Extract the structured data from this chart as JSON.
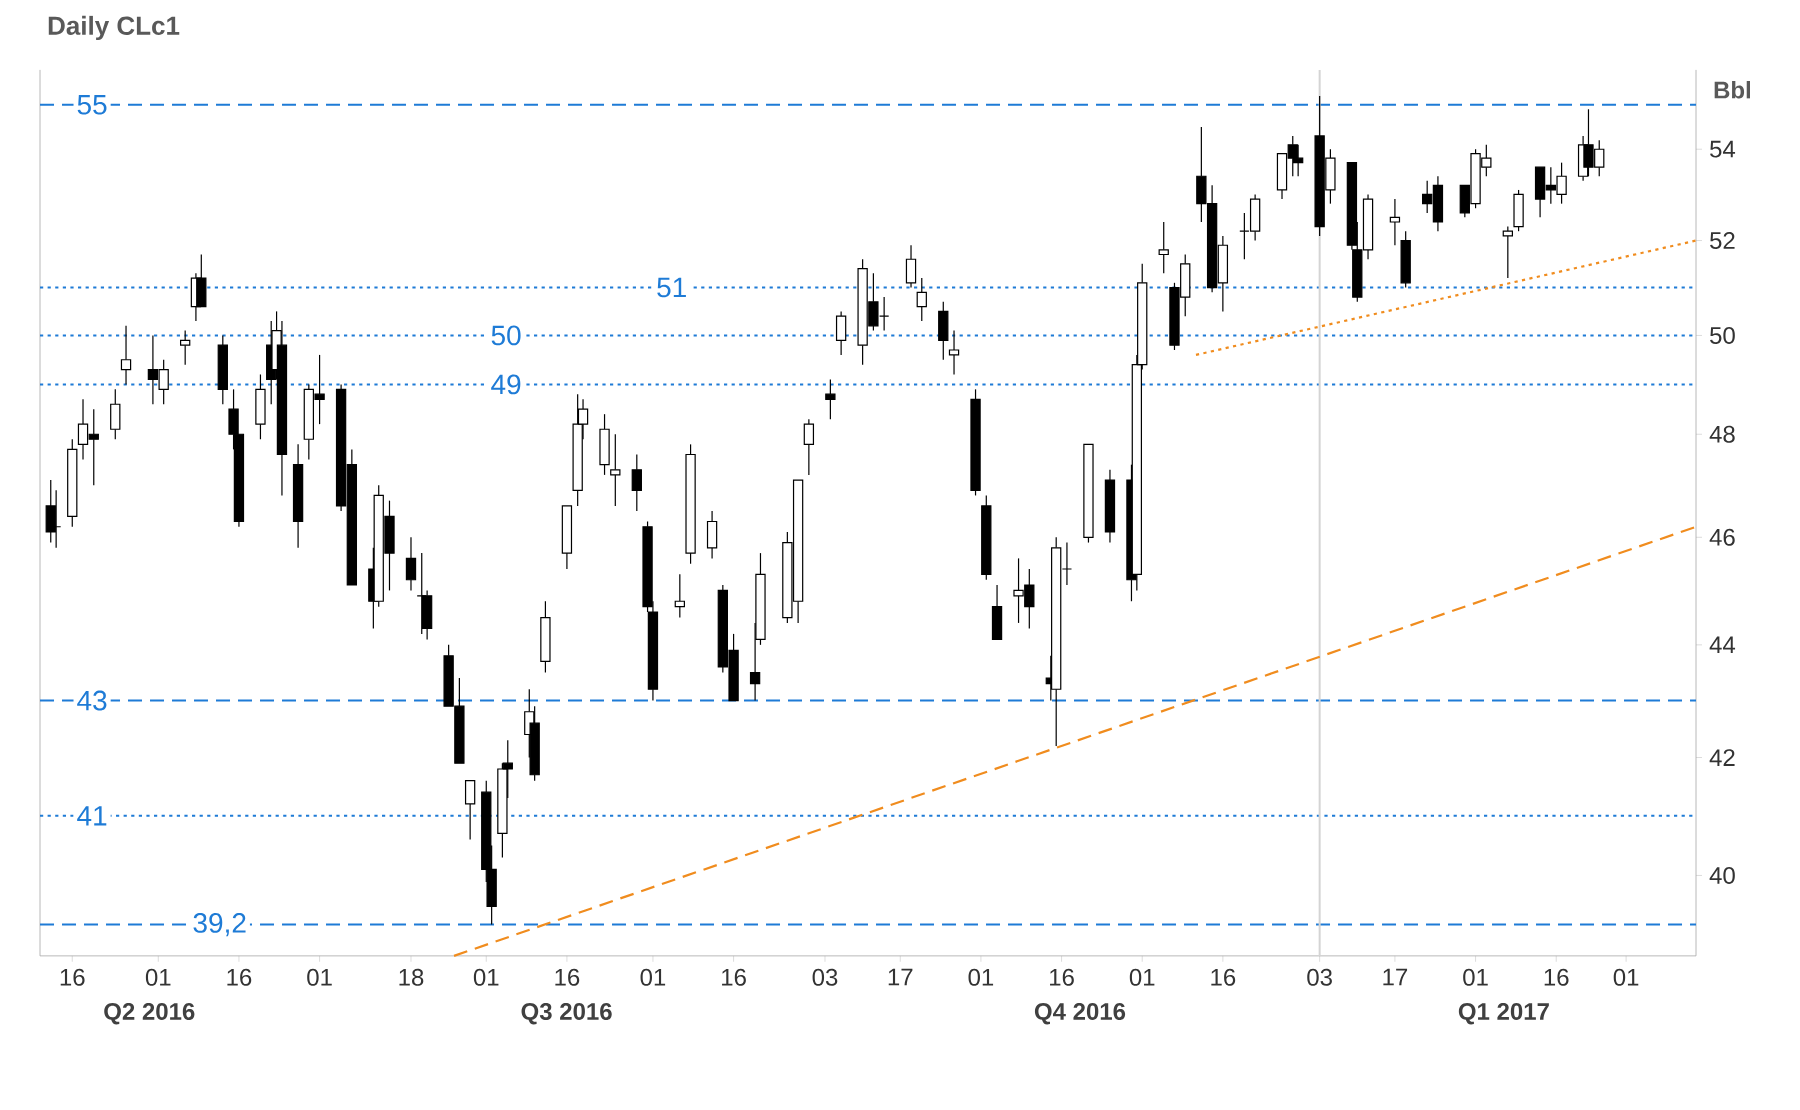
{
  "chart_data": {
    "type": "candlestick",
    "title": "Daily CLc1",
    "ylabel": "Bbl",
    "log": true,
    "xlim": [
      "2016-05-10",
      "2017-03-14"
    ],
    "ylim": [
      38.7,
      55.8
    ],
    "yticks": [
      40,
      42,
      44,
      46,
      48,
      50,
      52,
      54
    ],
    "xticks": [
      {
        "value": "2016-05-16",
        "label": "16"
      },
      {
        "value": "2016-06-01",
        "label": "01"
      },
      {
        "value": "2016-06-16",
        "label": "16"
      },
      {
        "value": "2016-07-01",
        "label": "01"
      },
      {
        "value": "2016-07-18",
        "label": "18"
      },
      {
        "value": "2016-08-01",
        "label": "01"
      },
      {
        "value": "2016-08-16",
        "label": "16"
      },
      {
        "value": "2016-09-01",
        "label": "01"
      },
      {
        "value": "2016-09-16",
        "label": "16"
      },
      {
        "value": "2016-10-03",
        "label": "03"
      },
      {
        "value": "2016-10-17",
        "label": "17"
      },
      {
        "value": "2016-11-01",
        "label": "01"
      },
      {
        "value": "2016-11-16",
        "label": "16"
      },
      {
        "value": "2016-12-01",
        "label": "01"
      },
      {
        "value": "2016-12-16",
        "label": "16"
      },
      {
        "value": "2017-01-03",
        "label": "03"
      },
      {
        "value": "2017-01-17",
        "label": "17"
      },
      {
        "value": "2017-02-01",
        "label": "01"
      },
      {
        "value": "2017-02-16",
        "label": "16"
      },
      {
        "value": "2017-03-01",
        "label": "01"
      }
    ],
    "annotations": [
      "Q2 2016",
      "Q3 2016",
      "Q4 2016",
      "Q1 2017"
    ],
    "ref_lines": [
      {
        "axis": "y",
        "value": 55,
        "label": "55",
        "color": "#1e7bd6",
        "line_style": "dashed"
      },
      {
        "axis": "y",
        "value": 51,
        "label": "51",
        "color": "#1e7bd6",
        "line_style": "dotted"
      },
      {
        "axis": "y",
        "value": 50,
        "label": "50",
        "color": "#1e7bd6",
        "line_style": "dotted"
      },
      {
        "axis": "y",
        "value": 49,
        "label": "49",
        "color": "#1e7bd6",
        "line_style": "dotted"
      },
      {
        "axis": "y",
        "value": 43,
        "label": "43",
        "color": "#1e7bd6",
        "line_style": "dashed"
      },
      {
        "axis": "y",
        "value": 41,
        "label": "41",
        "color": "#1e7bd6",
        "line_style": "dotted"
      },
      {
        "axis": "y",
        "value": 39.2,
        "label": "39,2",
        "color": "#1e7bd6",
        "line_style": "dashed"
      },
      {
        "axis": "x",
        "value": "2017-01-03",
        "color": "#d4d4d4",
        "line_style": "solid"
      }
    ],
    "series": [
      {
        "type": "line",
        "color": "#f08c1e",
        "line_style": "dashed",
        "x": [
          "2016-07-26",
          "2017-03-14"
        ],
        "values": [
          38.7,
          46.2
        ]
      },
      {
        "type": "line",
        "color": "#f08c1e",
        "line_style": "dotted",
        "x": [
          "2016-12-11",
          "2017-03-14"
        ],
        "values": [
          49.6,
          52.0
        ]
      }
    ],
    "x": [
      "2016-05-12",
      "2016-05-13",
      "2016-05-16",
      "2016-05-18",
      "2016-05-20",
      "2016-05-24",
      "2016-05-26",
      "2016-05-31",
      "2016-06-02",
      "2016-06-06",
      "2016-06-08",
      "2016-06-09",
      "2016-06-13",
      "2016-06-15",
      "2016-06-16",
      "2016-06-20",
      "2016-06-22",
      "2016-06-23",
      "2016-06-24",
      "2016-06-27",
      "2016-06-29",
      "2016-07-01",
      "2016-07-05",
      "2016-07-07",
      "2016-07-11",
      "2016-07-12",
      "2016-07-14",
      "2016-07-18",
      "2016-07-20",
      "2016-07-21",
      "2016-07-25",
      "2016-07-27",
      "2016-07-29",
      "2016-08-01",
      "2016-08-02",
      "2016-08-04",
      "2016-08-05",
      "2016-08-09",
      "2016-08-10",
      "2016-08-12",
      "2016-08-16",
      "2016-08-18",
      "2016-08-19",
      "2016-08-23",
      "2016-08-25",
      "2016-08-29",
      "2016-08-31",
      "2016-09-01",
      "2016-09-06",
      "2016-09-08",
      "2016-09-12",
      "2016-09-14",
      "2016-09-16",
      "2016-09-20",
      "2016-09-21",
      "2016-09-26",
      "2016-09-28",
      "2016-09-30",
      "2016-10-04",
      "2016-10-06",
      "2016-10-10",
      "2016-10-12",
      "2016-10-14",
      "2016-10-19",
      "2016-10-21",
      "2016-10-25",
      "2016-10-27",
      "2016-10-31",
      "2016-11-02",
      "2016-11-04",
      "2016-11-08",
      "2016-11-10",
      "2016-11-14",
      "2016-11-15",
      "2016-11-17",
      "2016-11-21",
      "2016-11-25",
      "2016-11-29",
      "2016-11-30",
      "2016-12-01",
      "2016-12-05",
      "2016-12-07",
      "2016-12-09",
      "2016-12-12",
      "2016-12-14",
      "2016-12-16",
      "2016-12-20",
      "2016-12-22",
      "2016-12-27",
      "2016-12-29",
      "2016-12-30",
      "2017-01-03",
      "2017-01-05",
      "2017-01-09",
      "2017-01-10",
      "2017-01-12",
      "2017-01-17",
      "2017-01-19",
      "2017-01-23",
      "2017-01-25",
      "2017-01-30",
      "2017-02-01",
      "2017-02-03",
      "2017-02-07",
      "2017-02-09",
      "2017-02-13",
      "2017-02-15",
      "2017-02-17",
      "2017-02-21",
      "2017-02-22",
      "2017-02-24"
    ],
    "ohlc": [
      [
        46.6,
        47.1,
        45.9,
        46.1
      ],
      [
        46.2,
        46.9,
        45.8,
        46.2
      ],
      [
        46.4,
        47.9,
        46.2,
        47.7
      ],
      [
        47.8,
        48.7,
        47.5,
        48.2
      ],
      [
        48.0,
        48.5,
        47.0,
        47.9
      ],
      [
        48.1,
        48.9,
        47.9,
        48.6
      ],
      [
        49.3,
        50.2,
        49.0,
        49.5
      ],
      [
        49.3,
        50.0,
        48.6,
        49.1
      ],
      [
        48.9,
        49.5,
        48.6,
        49.3
      ],
      [
        49.8,
        50.1,
        49.4,
        49.9
      ],
      [
        50.6,
        51.3,
        50.3,
        51.2
      ],
      [
        51.2,
        51.7,
        50.6,
        50.6
      ],
      [
        49.8,
        50.0,
        48.6,
        48.9
      ],
      [
        48.5,
        48.9,
        47.7,
        48.0
      ],
      [
        48.0,
        48.0,
        46.2,
        46.3
      ],
      [
        48.2,
        49.2,
        47.9,
        48.9
      ],
      [
        49.8,
        50.3,
        48.6,
        49.1
      ],
      [
        49.3,
        50.5,
        49.1,
        50.1
      ],
      [
        49.8,
        50.3,
        46.8,
        47.6
      ],
      [
        47.4,
        47.8,
        45.8,
        46.3
      ],
      [
        47.9,
        49.0,
        47.5,
        48.9
      ],
      [
        48.8,
        49.6,
        48.2,
        48.7
      ],
      [
        48.9,
        49.0,
        46.5,
        46.6
      ],
      [
        47.4,
        47.7,
        45.1,
        45.1
      ],
      [
        45.4,
        45.8,
        44.3,
        44.8
      ],
      [
        44.8,
        47.0,
        44.7,
        46.8
      ],
      [
        46.4,
        46.7,
        45.0,
        45.7
      ],
      [
        45.6,
        46.0,
        45.0,
        45.2
      ],
      [
        44.9,
        45.7,
        44.2,
        44.9
      ],
      [
        44.9,
        45.0,
        44.1,
        44.3
      ],
      [
        43.8,
        44.0,
        42.9,
        42.9
      ],
      [
        42.9,
        43.4,
        41.9,
        41.9
      ],
      [
        41.2,
        41.6,
        40.6,
        41.6
      ],
      [
        41.4,
        41.6,
        39.9,
        40.1
      ],
      [
        40.1,
        40.5,
        39.2,
        39.5
      ],
      [
        40.7,
        41.9,
        40.3,
        41.8
      ],
      [
        41.9,
        42.3,
        41.3,
        41.8
      ],
      [
        42.4,
        43.2,
        42.0,
        42.8
      ],
      [
        42.6,
        42.9,
        41.6,
        41.7
      ],
      [
        43.7,
        44.8,
        43.5,
        44.5
      ],
      [
        45.7,
        46.6,
        45.4,
        46.6
      ],
      [
        46.9,
        48.8,
        46.6,
        48.2
      ],
      [
        48.2,
        48.7,
        47.9,
        48.5
      ],
      [
        47.4,
        48.4,
        47.2,
        48.1
      ],
      [
        47.2,
        48.0,
        46.6,
        47.3
      ],
      [
        47.3,
        47.6,
        46.5,
        46.9
      ],
      [
        46.2,
        46.3,
        44.6,
        44.7
      ],
      [
        44.6,
        44.8,
        43.0,
        43.2
      ],
      [
        44.7,
        45.3,
        44.5,
        44.8
      ],
      [
        45.7,
        47.8,
        45.5,
        47.6
      ],
      [
        45.8,
        46.5,
        45.6,
        46.3
      ],
      [
        45.0,
        45.1,
        43.5,
        43.6
      ],
      [
        43.9,
        44.2,
        43.0,
        43.0
      ],
      [
        43.5,
        44.4,
        43.0,
        43.3
      ],
      [
        44.1,
        45.7,
        44.0,
        45.3
      ],
      [
        44.5,
        46.1,
        44.4,
        45.9
      ],
      [
        44.8,
        47.1,
        44.4,
        47.1
      ],
      [
        47.8,
        48.3,
        47.2,
        48.2
      ],
      [
        48.8,
        49.1,
        48.3,
        48.7
      ],
      [
        49.9,
        50.5,
        49.6,
        50.4
      ],
      [
        49.8,
        51.6,
        49.4,
        51.4
      ],
      [
        50.7,
        51.3,
        50.1,
        50.2
      ],
      [
        50.4,
        50.8,
        50.1,
        50.4
      ],
      [
        51.1,
        51.9,
        51.0,
        51.6
      ],
      [
        50.6,
        51.2,
        50.3,
        50.9
      ],
      [
        50.5,
        50.7,
        49.5,
        49.9
      ],
      [
        49.6,
        50.1,
        49.2,
        49.7
      ],
      [
        48.7,
        48.9,
        46.8,
        46.9
      ],
      [
        46.6,
        46.8,
        45.2,
        45.3
      ],
      [
        44.7,
        45.1,
        44.1,
        44.1
      ],
      [
        44.9,
        45.6,
        44.4,
        45.0
      ],
      [
        45.1,
        45.4,
        44.3,
        44.7
      ],
      [
        43.4,
        43.8,
        43.0,
        43.3
      ],
      [
        43.2,
        46.0,
        42.2,
        45.8
      ],
      [
        45.4,
        45.9,
        45.1,
        45.4
      ],
      [
        46.0,
        47.8,
        45.9,
        47.8
      ],
      [
        47.1,
        47.3,
        45.9,
        46.1
      ],
      [
        47.1,
        47.4,
        44.8,
        45.2
      ],
      [
        45.3,
        49.6,
        45.0,
        49.4
      ],
      [
        49.4,
        51.5,
        49.3,
        51.1
      ],
      [
        51.7,
        52.4,
        51.3,
        51.8
      ],
      [
        51.0,
        51.1,
        49.7,
        49.8
      ],
      [
        50.8,
        51.7,
        50.4,
        51.5
      ],
      [
        53.4,
        54.5,
        52.4,
        52.8
      ],
      [
        52.8,
        53.2,
        50.9,
        51.0
      ],
      [
        51.1,
        52.1,
        50.5,
        51.9
      ],
      [
        52.2,
        52.6,
        51.6,
        52.2
      ],
      [
        52.2,
        53.0,
        52.0,
        52.9
      ],
      [
        53.1,
        53.9,
        52.9,
        53.9
      ],
      [
        54.1,
        54.3,
        53.4,
        53.8
      ],
      [
        53.8,
        54.1,
        53.4,
        53.7
      ],
      [
        54.3,
        55.2,
        52.1,
        52.3
      ],
      [
        53.1,
        54.0,
        52.8,
        53.8
      ],
      [
        53.7,
        53.7,
        51.8,
        51.9
      ],
      [
        51.8,
        52.4,
        50.7,
        50.8
      ],
      [
        51.8,
        53.0,
        51.6,
        52.9
      ],
      [
        52.4,
        52.9,
        51.9,
        52.5
      ],
      [
        52.0,
        52.2,
        51.0,
        51.1
      ],
      [
        53.0,
        53.3,
        52.6,
        52.8
      ],
      [
        53.2,
        53.4,
        52.2,
        52.4
      ],
      [
        53.2,
        53.2,
        52.5,
        52.6
      ],
      [
        52.8,
        54.0,
        52.7,
        53.9
      ],
      [
        53.6,
        54.1,
        53.4,
        53.8
      ],
      [
        52.1,
        52.3,
        51.2,
        52.2
      ],
      [
        52.3,
        53.1,
        52.2,
        53.0
      ],
      [
        53.6,
        53.6,
        52.5,
        52.9
      ],
      [
        53.2,
        53.6,
        52.8,
        53.1
      ],
      [
        53.0,
        53.7,
        52.8,
        53.4
      ],
      [
        53.4,
        54.3,
        53.3,
        54.1
      ],
      [
        54.1,
        54.9,
        53.4,
        53.6
      ],
      [
        53.6,
        54.2,
        53.4,
        54.0
      ]
    ]
  }
}
